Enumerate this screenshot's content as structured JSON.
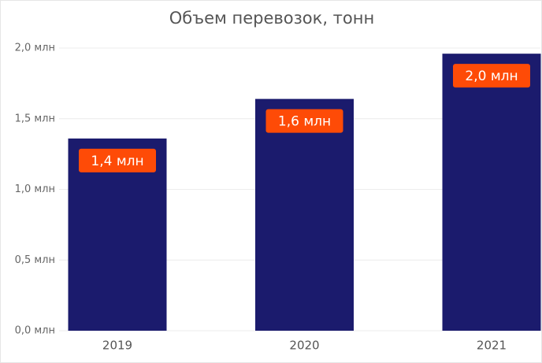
{
  "chart_data": {
    "type": "bar",
    "title": "Объем перевозок, тонн",
    "categories": [
      "2019",
      "2020",
      "2021"
    ],
    "values": [
      1360000,
      1640000,
      1960000
    ],
    "value_labels": [
      "1,4 млн",
      "1,6 млн",
      "2,0 млн"
    ],
    "color": "#1b1b6d",
    "label_color": "#fe4b07",
    "ylim": [
      0,
      2000000
    ],
    "yticks": [
      {
        "value": 0,
        "label": "0,0 млн"
      },
      {
        "value": 500000,
        "label": "0,5 млн"
      },
      {
        "value": 1000000,
        "label": "1,0 млн"
      },
      {
        "value": 1500000,
        "label": "1,5 млн"
      },
      {
        "value": 2000000,
        "label": "2,0 млн"
      }
    ],
    "grid": true
  }
}
